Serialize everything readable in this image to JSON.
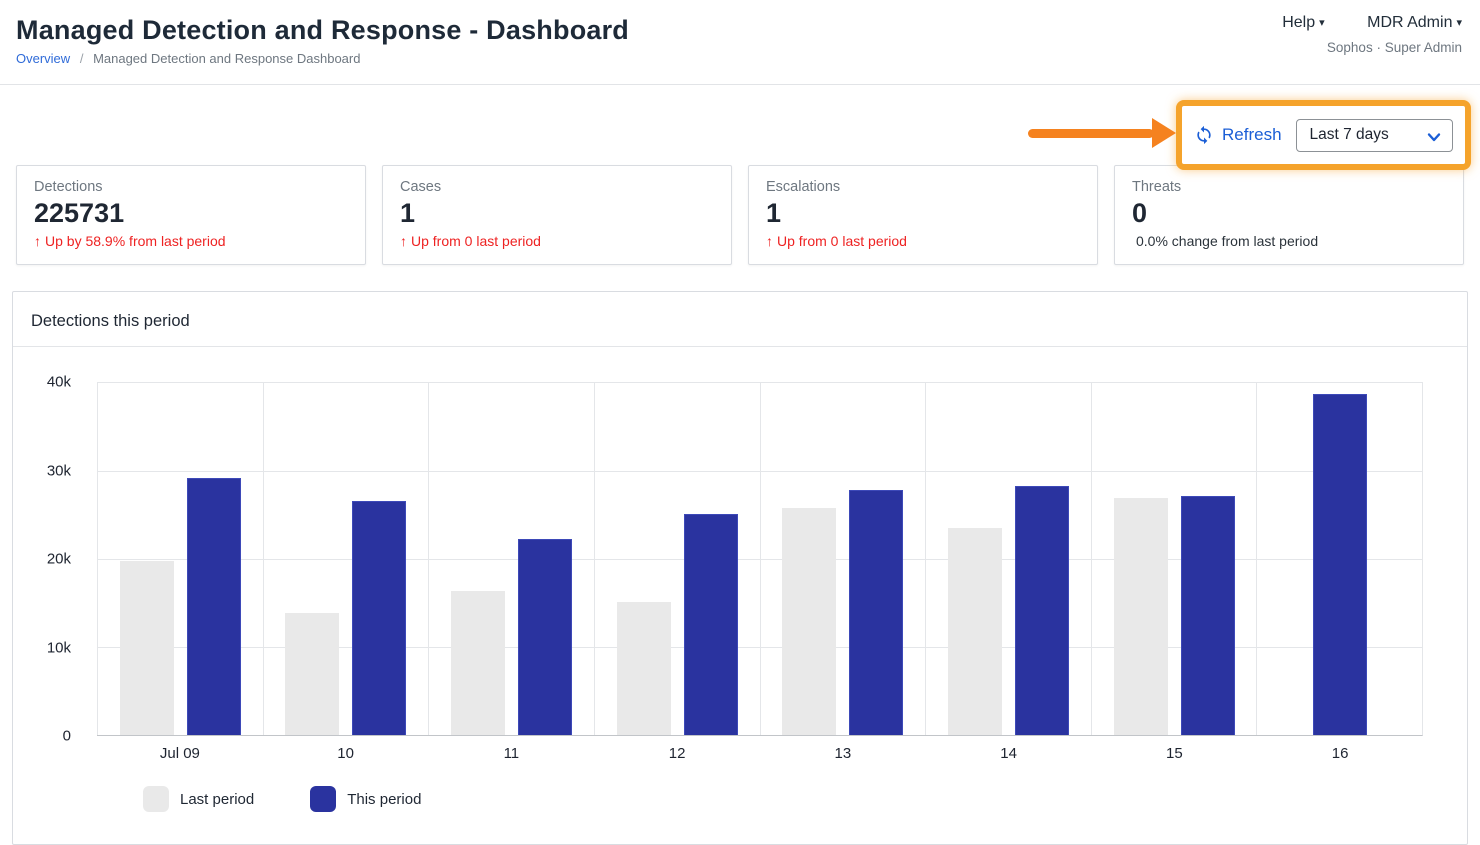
{
  "header": {
    "title": "Managed Detection and Response - Dashboard",
    "breadcrumb": {
      "overview": "Overview",
      "separator": "/",
      "current": "Managed Detection and Response Dashboard"
    },
    "menus": {
      "help": "Help",
      "account": "MDR Admin",
      "caret": "▾"
    },
    "account_subtitle": "Sophos · Super Admin"
  },
  "toolbar": {
    "refresh_label": "Refresh",
    "date_range_value": "Last 7 days",
    "annotation": {
      "box_color": "#f5a32b",
      "arrow_color": "#f5821f"
    }
  },
  "cards": [
    {
      "label": "Detections",
      "value": "225731",
      "delta_arrow": "↑",
      "delta": "Up by 58.9% from last period",
      "delta_color": "red"
    },
    {
      "label": "Cases",
      "value": "1",
      "delta_arrow": "↑",
      "delta": "Up from 0 last period",
      "delta_color": "red"
    },
    {
      "label": "Escalations",
      "value": "1",
      "delta_arrow": "↑",
      "delta": "Up from 0 last period",
      "delta_color": "red"
    },
    {
      "label": "Threats",
      "value": "0",
      "delta_arrow": "",
      "delta": "0.0% change from last period",
      "delta_color": "neutral"
    }
  ],
  "chart_data": {
    "type": "bar",
    "title": "Detections this period",
    "categories": [
      "Jul 09",
      "10",
      "11",
      "12",
      "13",
      "14",
      "15",
      "16"
    ],
    "series": [
      {
        "name": "Last period",
        "color": "#e9e9e9",
        "values": [
          19800,
          13900,
          16400,
          15100,
          25800,
          23500,
          26900,
          0
        ]
      },
      {
        "name": "This period",
        "color": "#2a339f",
        "values": [
          29200,
          26600,
          22300,
          25100,
          27800,
          28300,
          27200,
          38800
        ]
      }
    ],
    "ylim": [
      0,
      40000
    ],
    "ytick_labels": [
      "40k",
      "30k",
      "20k",
      "10k",
      "0"
    ],
    "grid": true,
    "legend_position": "bottom-left"
  }
}
